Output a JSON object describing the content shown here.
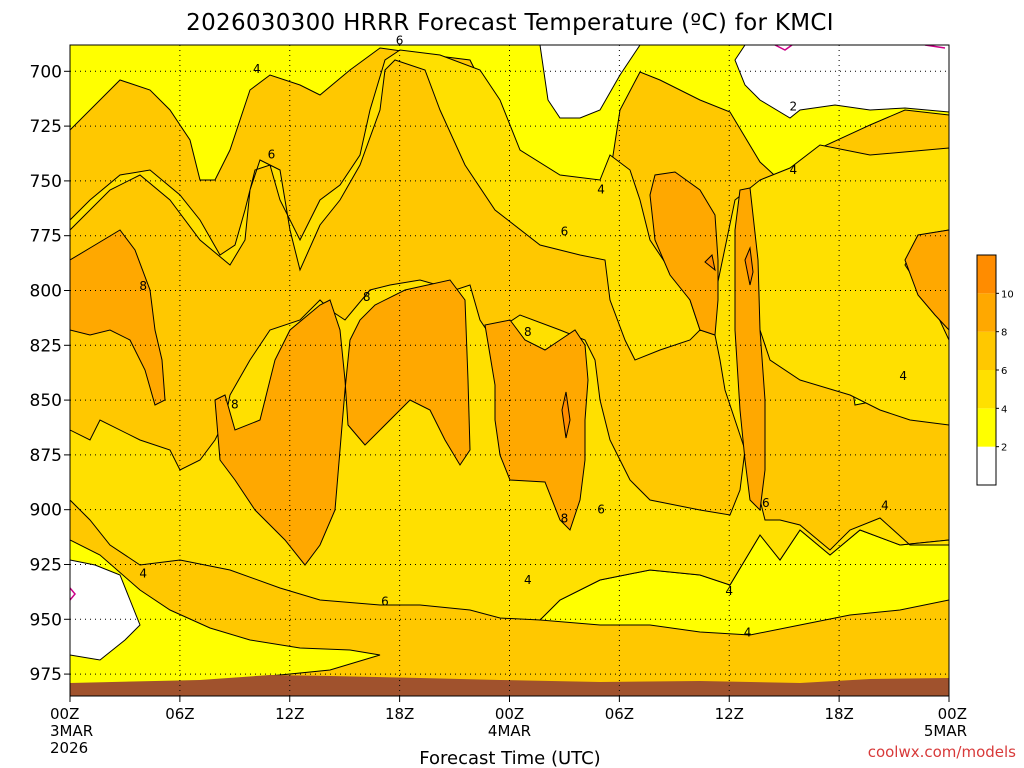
{
  "chart_data": {
    "type": "heatmap",
    "title": "2026030300 HRRR Forecast Temperature (ºC) for KMCI",
    "xlabel": "Forecast Time (UTC)",
    "ylabel": "",
    "x_ticks": [
      {
        "label": "00Z",
        "sub1": "3MAR",
        "sub2": "2026",
        "hour": 0
      },
      {
        "label": "06Z",
        "sub1": "",
        "sub2": "",
        "hour": 6
      },
      {
        "label": "12Z",
        "sub1": "",
        "sub2": "",
        "hour": 12
      },
      {
        "label": "18Z",
        "sub1": "",
        "sub2": "",
        "hour": 18
      },
      {
        "label": "00Z",
        "sub1": "4MAR",
        "sub2": "",
        "hour": 24
      },
      {
        "label": "06Z",
        "sub1": "",
        "sub2": "",
        "hour": 30
      },
      {
        "label": "12Z",
        "sub1": "",
        "sub2": "",
        "hour": 36
      },
      {
        "label": "18Z",
        "sub1": "",
        "sub2": "",
        "hour": 42
      },
      {
        "label": "00Z",
        "sub1": "5MAR",
        "sub2": "",
        "hour": 48
      }
    ],
    "y_ticks": [
      "700",
      "725",
      "750",
      "775",
      "800",
      "825",
      "850",
      "875",
      "900",
      "925",
      "950",
      "975"
    ],
    "y_axis": "pressure (hPa), inverted",
    "xlim": [
      0,
      48
    ],
    "ylim": [
      985,
      688
    ],
    "grid": true,
    "colorbar": {
      "position": "right",
      "ticks": [
        "2",
        "4",
        "6",
        "8",
        "10"
      ],
      "bins": [
        {
          "range": [
            null,
            2
          ],
          "color": "#ffffff"
        },
        {
          "range": [
            2,
            4
          ],
          "color": "#ffff00"
        },
        {
          "range": [
            4,
            6
          ],
          "color": "#ffe000"
        },
        {
          "range": [
            6,
            8
          ],
          "color": "#ffc800"
        },
        {
          "range": [
            8,
            10
          ],
          "color": "#ffa800"
        },
        {
          "range": [
            10,
            null
          ],
          "color": "#ff8c00"
        }
      ]
    },
    "contour_labels": [
      {
        "text": "4",
        "hour": 10.2,
        "p": 699
      },
      {
        "text": "6",
        "hour": 18.0,
        "p": 686
      },
      {
        "text": "2",
        "hour": 39.5,
        "p": 716
      },
      {
        "text": "6",
        "hour": 11.0,
        "p": 738
      },
      {
        "text": "4",
        "hour": 29.0,
        "p": 754
      },
      {
        "text": "4",
        "hour": 39.5,
        "p": 745
      },
      {
        "text": "6",
        "hour": 27.0,
        "p": 773
      },
      {
        "text": "8",
        "hour": 4.0,
        "p": 798
      },
      {
        "text": "8",
        "hour": 16.2,
        "p": 803
      },
      {
        "text": "8",
        "hour": 25.0,
        "p": 819
      },
      {
        "text": "8",
        "hour": 9.0,
        "p": 852
      },
      {
        "text": "4",
        "hour": 45.5,
        "p": 839
      },
      {
        "text": "8",
        "hour": 27.0,
        "p": 904
      },
      {
        "text": "6",
        "hour": 29.0,
        "p": 900
      },
      {
        "text": "6",
        "hour": 38.0,
        "p": 897
      },
      {
        "text": "4",
        "hour": 44.5,
        "p": 898
      },
      {
        "text": "4",
        "hour": 4.0,
        "p": 929
      },
      {
        "text": "6",
        "hour": 17.2,
        "p": 942
      },
      {
        "text": "4",
        "hour": 25.0,
        "p": 932
      },
      {
        "text": "4",
        "hour": 36.0,
        "p": 937
      },
      {
        "text": "4",
        "hour": 37.0,
        "p": 956
      }
    ],
    "features": {
      "ground_color": "#a0522d",
      "surface_pressure": 983
    }
  },
  "credit": "coolwx.com/models"
}
